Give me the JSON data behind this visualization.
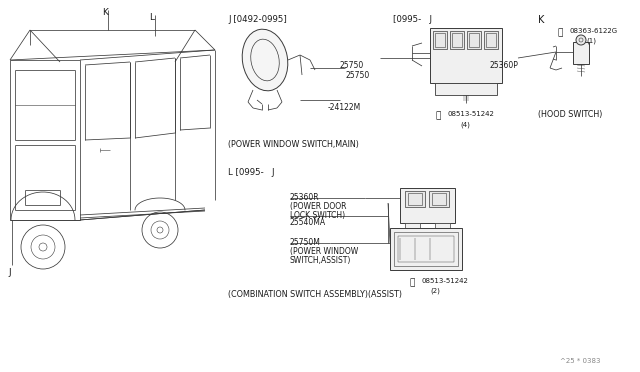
{
  "bg_color": "#ffffff",
  "fig_width": 6.4,
  "fig_height": 3.72,
  "dpi": 100,
  "text_color": "#1a1a1a",
  "line_color": "#2a2a2a",
  "font_size_tiny": 5.0,
  "font_size_small": 5.5,
  "font_size_medium": 6.2,
  "font_size_label": 5.8,
  "watermark": "^25 * 0383",
  "sections": {
    "j_old": "J [0492-0995]",
    "c0995_j": "[0995-   J",
    "k_label": "K",
    "l_section": "L [0995-   J",
    "car_k": "K",
    "car_l": "L",
    "car_j": "J"
  },
  "parts": {
    "25750": "25750",
    "24122m": "-24122M",
    "25750b": "25750",
    "08513_4": "08513-51242",
    "qty4": "(4)",
    "main_label": "(POWER WINDOW SWITCH,MAIN)",
    "25360p": "25360P",
    "08363": "08363-6122G",
    "qty1": "(1)",
    "hood_label": "(HOOD SWITCH)",
    "25360r": "25360R",
    "pdlock": "(POWER DOOR",
    "pdlock2": "LOCK SWITCH)",
    "25540ma": "25540MA",
    "25750m": "25750M",
    "pw_assist": "(POWER WINDOW",
    "pw_assist2": "SWITCH,ASSIST)",
    "08513_2": "08513-51242",
    "qty2": "(2)",
    "combo": "(COMBINATION SWITCH ASSEMBLY)(ASSIST)"
  }
}
